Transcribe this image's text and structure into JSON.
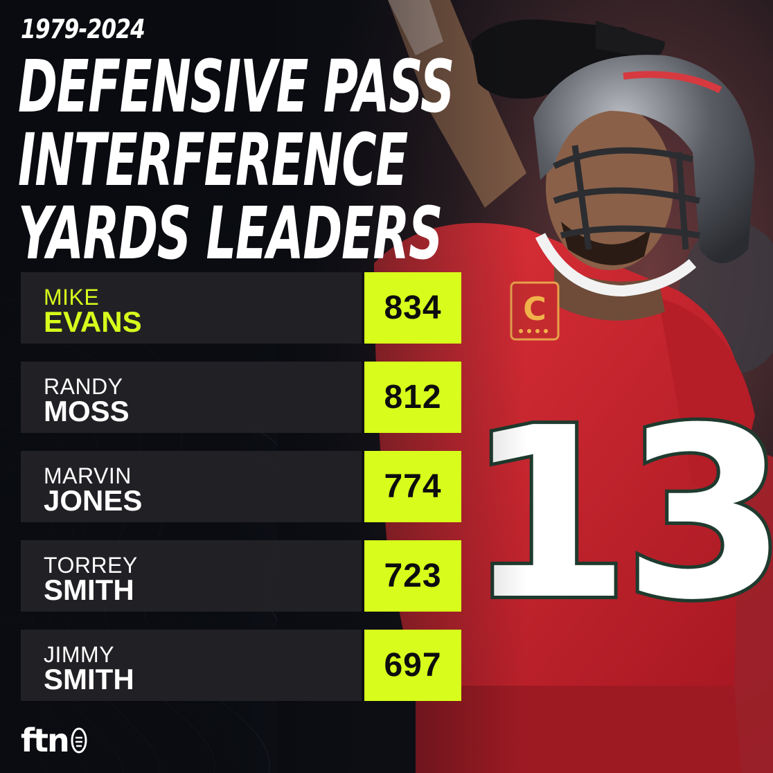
{
  "header": {
    "years": "1979-2024",
    "title_lines": [
      "DEFENSIVE PASS",
      "INTERFERENCE",
      "YARDS LEADERS"
    ]
  },
  "leaders": [
    {
      "first": "MIKE",
      "last": "EVANS",
      "yards": "834",
      "highlight": true
    },
    {
      "first": "RANDY",
      "last": "MOSS",
      "yards": "812",
      "highlight": false
    },
    {
      "first": "MARVIN",
      "last": "JONES",
      "yards": "774",
      "highlight": false
    },
    {
      "first": "TORREY",
      "last": "SMITH",
      "yards": "723",
      "highlight": false
    },
    {
      "first": "JIMMY",
      "last": "SMITH",
      "yards": "697",
      "highlight": false
    }
  ],
  "logo": {
    "text": "ftn"
  },
  "photo": {
    "jersey_number": "13",
    "captain_patch": "C"
  },
  "colors": {
    "accent": "#d8fd1c",
    "jersey": "#c8202c",
    "background": "#0b0d12"
  }
}
